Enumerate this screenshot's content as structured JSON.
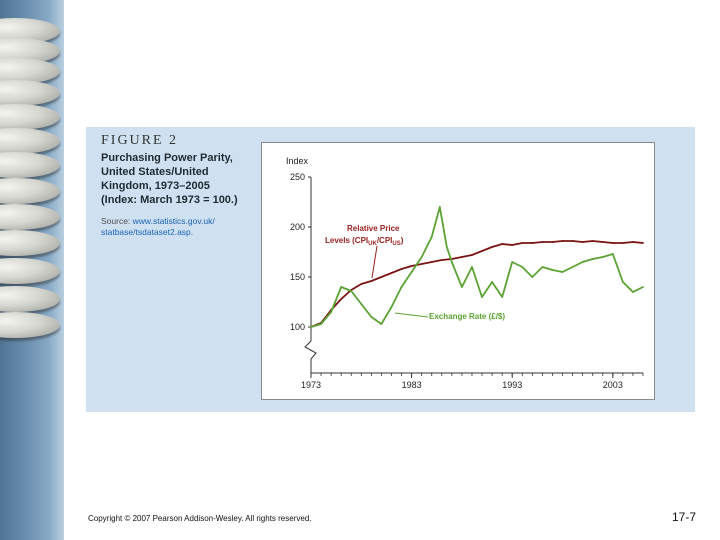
{
  "figure": {
    "label": "FIGURE 2",
    "title_lines": [
      "Purchasing Power Parity,",
      "United States/United",
      "Kingdom, 1973–2005",
      "(Index: March 1973 = 100.)"
    ],
    "source_prefix": "Source: ",
    "source_url_lines": [
      "www.statistics.gov.uk/",
      "statbase/tsdataset2.asp."
    ]
  },
  "footer": {
    "copyright": "Copyright © 2007 Pearson Addison-Wesley. All rights reserved.",
    "page": "17-7"
  },
  "colors": {
    "relative_price": "#7a1414",
    "exchange_rate": "#5aa332",
    "annotation": "#9b1d1d",
    "axis": "#333333"
  },
  "chart_data": {
    "type": "line",
    "ylabel": "Index",
    "ylim": [
      100,
      250
    ],
    "yticks": [
      100,
      150,
      200,
      250
    ],
    "xlim": [
      1973,
      2006
    ],
    "xticks": [
      1973,
      1983,
      1993,
      2003
    ],
    "grid": false,
    "axis_break": "y-axis break below 100",
    "annotations": {
      "relative_price_title": "Relative Price",
      "relative_price_label": "Levels (CPI",
      "uk_sub": "UK",
      "slash": "/CPI",
      "us_sub": "US",
      "close_paren": ")",
      "exchange_label": "Exchange Rate (£/$)"
    },
    "series": [
      {
        "name": "Relative Price Levels (CPIUK/CPIUS)",
        "x": [
          1973,
          1974,
          1975,
          1976,
          1977,
          1978,
          1979,
          1980,
          1981,
          1982,
          1983,
          1984,
          1985,
          1986,
          1987,
          1988,
          1989,
          1990,
          1991,
          1992,
          1993,
          1994,
          1995,
          1996,
          1997,
          1998,
          1999,
          2000,
          2001,
          2002,
          2003,
          2004,
          2005,
          2006
        ],
        "values": [
          100,
          104,
          117,
          128,
          137,
          143,
          146,
          150,
          154,
          158,
          161,
          163,
          165,
          167,
          168,
          170,
          172,
          176,
          180,
          183,
          182,
          184,
          184,
          185,
          185,
          186,
          186,
          185,
          186,
          185,
          184,
          184,
          185,
          184
        ]
      },
      {
        "name": "Exchange Rate (£/$)",
        "x": [
          1973,
          1974,
          1975,
          1976,
          1977,
          1978,
          1979,
          1980,
          1981,
          1982,
          1983,
          1984,
          1985,
          1985.8,
          1986.5,
          1987,
          1988,
          1989,
          1990,
          1991,
          1992,
          1993,
          1994,
          1995,
          1996,
          1997,
          1998,
          1999,
          2000,
          2001,
          2002,
          2003,
          2004,
          2005,
          2006
        ],
        "values": [
          100,
          103,
          115,
          140,
          136,
          123,
          110,
          103,
          120,
          140,
          155,
          170,
          190,
          220,
          180,
          165,
          140,
          160,
          130,
          145,
          130,
          165,
          160,
          150,
          160,
          157,
          155,
          160,
          165,
          168,
          170,
          173,
          145,
          135,
          140
        ]
      }
    ]
  }
}
